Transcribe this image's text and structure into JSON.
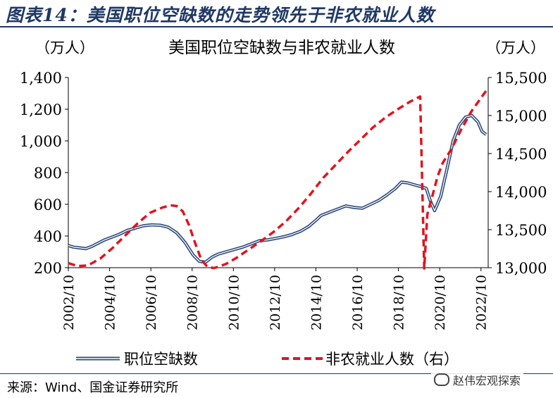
{
  "figure": {
    "title": "图表14：美国职位空缺数的走势领先于非农就业人数",
    "source": "来源：Wind、国金证券研究所",
    "watermark": "赵伟宏观探索"
  },
  "colors": {
    "vacancies": "#2f4b7c",
    "payrolls": "#e0141e",
    "title": "#1f3864"
  },
  "chart_data": {
    "type": "line",
    "title": "美国职位空缺数与非农就业人数",
    "left_unit": "（万人）",
    "right_unit": "（万人）",
    "x_ticks": [
      "2002/10",
      "2004/10",
      "2006/10",
      "2008/10",
      "2010/10",
      "2012/10",
      "2014/10",
      "2016/10",
      "2018/10",
      "2020/10",
      "2022/10"
    ],
    "xlim": [
      2002.75,
      2023.1
    ],
    "y_left": {
      "ticks": [
        "200",
        "400",
        "600",
        "800",
        "1,000",
        "1,200",
        "1,400"
      ],
      "lim": [
        200,
        1400
      ]
    },
    "y_right": {
      "ticks": [
        "13,000",
        "13,500",
        "14,000",
        "14,500",
        "15,000",
        "15,500"
      ],
      "lim": [
        13000,
        15500
      ]
    },
    "legend_position": "bottom",
    "series": [
      {
        "name": "职位空缺数",
        "axis": "left",
        "style": "solid-double",
        "x": [
          2002.75,
          2003.0,
          2003.3,
          2003.6,
          2003.9,
          2004.2,
          2004.5,
          2004.8,
          2005.2,
          2005.6,
          2006.0,
          2006.4,
          2006.8,
          2007.2,
          2007.6,
          2008.0,
          2008.4,
          2008.8,
          2009.1,
          2009.4,
          2009.7,
          2010.0,
          2010.4,
          2010.8,
          2011.2,
          2011.6,
          2012.0,
          2012.4,
          2012.8,
          2013.2,
          2013.6,
          2014.0,
          2014.4,
          2014.8,
          2015.0,
          2015.4,
          2015.8,
          2016.2,
          2016.6,
          2017.0,
          2017.4,
          2017.8,
          2018.2,
          2018.6,
          2018.9,
          2019.2,
          2019.6,
          2019.9,
          2020.1,
          2020.3,
          2020.5,
          2020.8,
          2021.1,
          2021.4,
          2021.7,
          2022.0,
          2022.3,
          2022.6,
          2022.8,
          2023.0
        ],
        "values": [
          340,
          330,
          325,
          320,
          335,
          355,
          375,
          390,
          410,
          435,
          450,
          465,
          470,
          468,
          455,
          420,
          360,
          280,
          240,
          235,
          265,
          285,
          300,
          315,
          330,
          350,
          370,
          375,
          385,
          395,
          410,
          430,
          460,
          505,
          530,
          550,
          570,
          590,
          580,
          575,
          600,
          625,
          660,
          700,
          740,
          735,
          720,
          710,
          700,
          620,
          560,
          650,
          820,
          1000,
          1100,
          1150,
          1160,
          1120,
          1060,
          1040
        ]
      },
      {
        "name": "非农就业人数（右）",
        "axis": "right",
        "style": "dashed",
        "x": [
          2002.75,
          2003.2,
          2003.7,
          2004.3,
          2004.9,
          2005.5,
          2006.1,
          2006.7,
          2007.3,
          2007.7,
          2008.0,
          2008.3,
          2008.6,
          2008.9,
          2009.2,
          2009.5,
          2009.8,
          2010.0,
          2010.4,
          2010.9,
          2011.5,
          2012.1,
          2012.7,
          2013.3,
          2013.9,
          2014.5,
          2015.1,
          2015.7,
          2016.3,
          2016.9,
          2017.5,
          2018.1,
          2018.7,
          2019.3,
          2019.8,
          2020.0,
          2020.15,
          2020.3,
          2020.45,
          2020.65,
          2020.9,
          2021.3,
          2021.8,
          2022.3,
          2022.8,
          2023.1
        ],
        "values": [
          13060,
          13020,
          13030,
          13120,
          13260,
          13420,
          13580,
          13720,
          13790,
          13820,
          13810,
          13740,
          13560,
          13320,
          13100,
          13010,
          12995,
          13010,
          13050,
          13130,
          13240,
          13350,
          13470,
          13610,
          13780,
          13970,
          14180,
          14350,
          14520,
          14680,
          14840,
          14970,
          15080,
          15180,
          15250,
          12990,
          13700,
          13850,
          14000,
          14200,
          14380,
          14550,
          14820,
          15060,
          15250,
          15360
        ]
      }
    ]
  }
}
